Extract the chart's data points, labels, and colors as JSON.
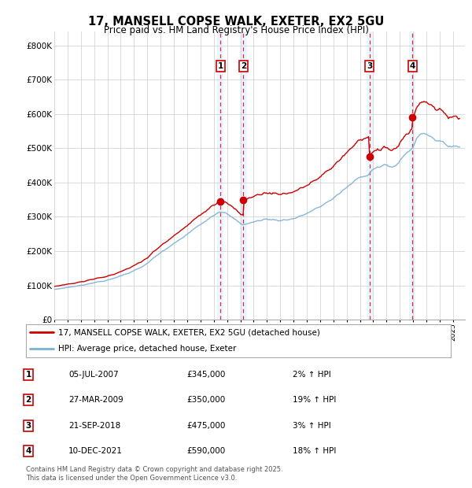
{
  "title": "17, MANSELL COPSE WALK, EXETER, EX2 5GU",
  "subtitle": "Price paid vs. HM Land Registry's House Price Index (HPI)",
  "ylabel_ticks": [
    "£0",
    "£100K",
    "£200K",
    "£300K",
    "£400K",
    "£500K",
    "£600K",
    "£700K",
    "£800K"
  ],
  "ytick_values": [
    0,
    100000,
    200000,
    300000,
    400000,
    500000,
    600000,
    700000,
    800000
  ],
  "ylim": [
    0,
    840000
  ],
  "xlim_start": 1995.0,
  "xlim_end": 2025.9,
  "hpi_color": "#7ab0d4",
  "price_color": "#cc0000",
  "background_color": "#ffffff",
  "plot_bg_color": "#ffffff",
  "grid_color": "#cccccc",
  "purchases": [
    {
      "label": "1",
      "date_str": "05-JUL-2007",
      "price": 345000,
      "pct": "2% ↑ HPI",
      "year": 2007.504
    },
    {
      "label": "2",
      "date_str": "27-MAR-2009",
      "price": 350000,
      "pct": "19% ↑ HPI",
      "year": 2009.233
    },
    {
      "label": "3",
      "date_str": "21-SEP-2018",
      "price": 475000,
      "pct": "3% ↑ HPI",
      "year": 2018.721
    },
    {
      "label": "4",
      "date_str": "10-DEC-2021",
      "price": 590000,
      "pct": "18% ↑ HPI",
      "year": 2021.94
    }
  ],
  "legend_entries": [
    {
      "label": "17, MANSELL COPSE WALK, EXETER, EX2 5GU (detached house)",
      "color": "#cc0000"
    },
    {
      "label": "HPI: Average price, detached house, Exeter",
      "color": "#7ab0d4"
    }
  ],
  "footnote": "Contains HM Land Registry data © Crown copyright and database right 2025.\nThis data is licensed under the Open Government Licence v3.0.",
  "table_rows": [
    [
      "1",
      "05-JUL-2007",
      "£345,000",
      "2% ↑ HPI"
    ],
    [
      "2",
      "27-MAR-2009",
      "£350,000",
      "19% ↑ HPI"
    ],
    [
      "3",
      "21-SEP-2018",
      "£475,000",
      "3% ↑ HPI"
    ],
    [
      "4",
      "10-DEC-2021",
      "£590,000",
      "18% ↑ HPI"
    ]
  ]
}
